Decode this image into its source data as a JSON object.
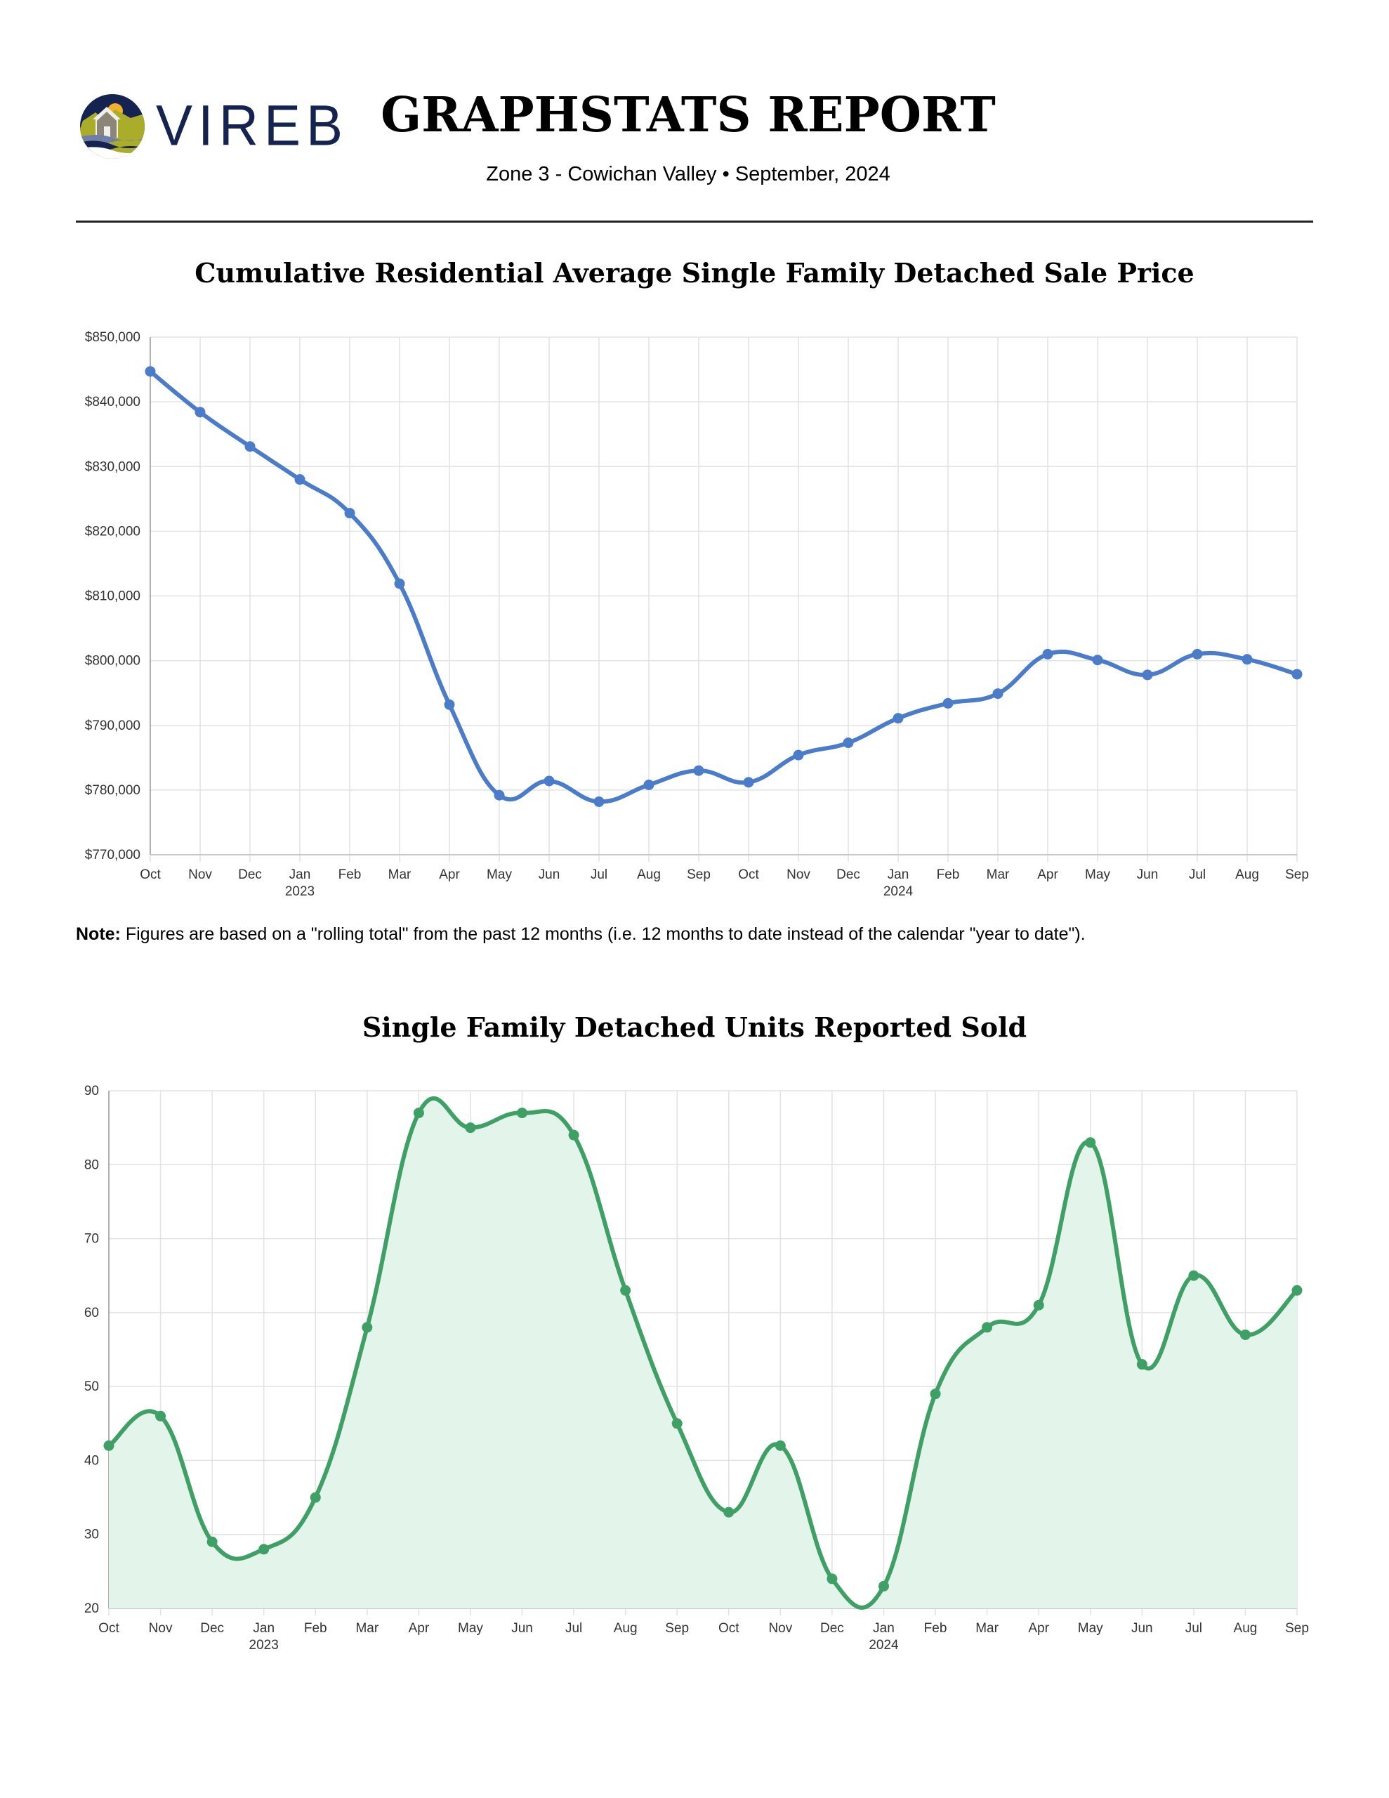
{
  "header": {
    "logo_text": "VIREB",
    "title": "GRAPHSTATS REPORT",
    "subtitle": "Zone 3 - Cowichan Valley • September, 2024",
    "colors": {
      "logo_navy": "#14234f",
      "logo_olive": "#a9ad2a",
      "logo_sun": "#f2b02c",
      "logo_house": "#8b8678",
      "logo_wave": "#6f7fa8"
    }
  },
  "note": {
    "label": "Note:",
    "text": " Figures are based on a \"rolling total\" from the past 12 months (i.e. 12 months to date instead of the calendar \"year to date\")."
  },
  "chart_data": [
    {
      "type": "line",
      "title": "Cumulative Residential Average Single Family Detached Sale Price",
      "xlabel": "",
      "ylabel": "",
      "categories": [
        "Oct",
        "Nov",
        "Dec",
        "Jan",
        "Feb",
        "Mar",
        "Apr",
        "May",
        "Jun",
        "Jul",
        "Aug",
        "Sep",
        "Oct",
        "Nov",
        "Dec",
        "Jan",
        "Feb",
        "Mar",
        "Apr",
        "May",
        "Jun",
        "Jul",
        "Aug",
        "Sep"
      ],
      "year_labels": {
        "3": "2023",
        "15": "2024"
      },
      "series": [
        {
          "name": "Average Sale Price",
          "color": "#4a7cc9",
          "values": [
            844700,
            838400,
            833100,
            828000,
            822800,
            811900,
            793200,
            779200,
            781400,
            778200,
            780800,
            783000,
            781200,
            785400,
            787300,
            791100,
            793400,
            794900,
            801000,
            800100,
            797800,
            801000,
            800200,
            797900
          ]
        }
      ],
      "ylim": [
        770000,
        850000
      ],
      "yticks": [
        770000,
        780000,
        790000,
        800000,
        810000,
        820000,
        830000,
        840000,
        850000
      ],
      "ytick_labels": [
        "$770,000",
        "$780,000",
        "$790,000",
        "$800,000",
        "$810,000",
        "$820,000",
        "$830,000",
        "$840,000",
        "$850,000"
      ],
      "grid": true,
      "legend": "none",
      "smooth": true
    },
    {
      "type": "area",
      "title": "Single Family Detached Units Reported Sold",
      "xlabel": "",
      "ylabel": "",
      "categories": [
        "Oct",
        "Nov",
        "Dec",
        "Jan",
        "Feb",
        "Mar",
        "Apr",
        "May",
        "Jun",
        "Jul",
        "Aug",
        "Sep",
        "Oct",
        "Nov",
        "Dec",
        "Jan",
        "Feb",
        "Mar",
        "Apr",
        "May",
        "Jun",
        "Jul",
        "Aug",
        "Sep"
      ],
      "year_labels": {
        "3": "2023",
        "15": "2024"
      },
      "series": [
        {
          "name": "Units Sold",
          "color": "#3fa066",
          "fill": "#e3f4ea",
          "values": [
            42,
            46,
            29,
            28,
            35,
            58,
            87,
            85,
            87,
            84,
            63,
            45,
            33,
            42,
            24,
            23,
            49,
            58,
            61,
            83,
            53,
            65,
            57,
            63
          ]
        }
      ],
      "ylim": [
        20,
        90
      ],
      "yticks": [
        20,
        30,
        40,
        50,
        60,
        70,
        80,
        90
      ],
      "ytick_labels": [
        "20",
        "30",
        "40",
        "50",
        "60",
        "70",
        "80",
        "90"
      ],
      "grid": true,
      "legend": "none",
      "smooth": true
    }
  ]
}
